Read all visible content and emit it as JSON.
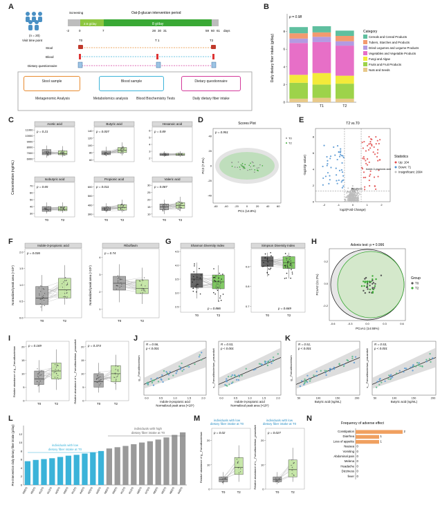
{
  "figure": {
    "panels": [
      "A",
      "B",
      "C",
      "D",
      "E",
      "F",
      "G",
      "H",
      "I",
      "J",
      "K",
      "L",
      "M",
      "N"
    ]
  },
  "panel_a": {
    "n_label": "(n = 20)",
    "phase_screening": "Screening",
    "phase_intervention": "Oat-β-glucan intervention period",
    "dose1": "2.6 g/day",
    "dose2": "8 g/day",
    "day_ticks": [
      "-2",
      "0",
      "7",
      "28",
      "30",
      "31",
      "59",
      "60",
      "61"
    ],
    "days_label": "days",
    "visit_label": "Visit time point",
    "visits": [
      "T0",
      "T 1",
      "T2"
    ],
    "rows": [
      "Stool",
      "Blood",
      "Dietary questionnaire"
    ],
    "boxes": [
      {
        "title": "Stool sample",
        "sub": "Metagenomic Analysis",
        "color": "#e88a2e"
      },
      {
        "title": "Blood sample",
        "sub1": "Metabolomics analysis",
        "sub2": "Blood Biochemistry Tests",
        "color": "#3bb3d9"
      },
      {
        "title": "Dietary questionnaire",
        "sub": "Daily dietary fiber intake",
        "color": "#d3389a"
      }
    ]
  },
  "chart_data": [
    {
      "panel": "B",
      "type": "bar",
      "stacked": true,
      "ylabel": "Daily dietary fiber intake (g/day)",
      "p_label": "p = 0.98",
      "categories": [
        "T0",
        "T1",
        "T2"
      ],
      "ylim": [
        0,
        10
      ],
      "yticks": [
        0,
        2,
        4,
        6,
        8
      ],
      "legend_title": "Category",
      "series": [
        {
          "name": "Nuts and Seeds",
          "color": "#e8c98a",
          "values": [
            0.4,
            0.5,
            0.4
          ]
        },
        {
          "name": "Fruits and Fruit Products",
          "color": "#9dd34a",
          "values": [
            1.8,
            1.5,
            1.7
          ]
        },
        {
          "name": "Fungi and Algae",
          "color": "#f3ea3a",
          "values": [
            0.9,
            1.3,
            0.9
          ]
        },
        {
          "name": "Vegetables and Vegetable Products",
          "color": "#e76fc7",
          "values": [
            3.6,
            3.5,
            3.4
          ]
        },
        {
          "name": "Dried Legumes and Legume Products",
          "color": "#b39be2",
          "values": [
            0.5,
            0.6,
            0.5
          ]
        },
        {
          "name": "Tubers, Starches and Products",
          "color": "#f39a6f",
          "values": [
            0.6,
            0.5,
            0.6
          ]
        },
        {
          "name": "Cereals and Cereal Products",
          "color": "#5fbf9f",
          "values": [
            0.7,
            0.7,
            0.6
          ]
        }
      ]
    },
    {
      "panel": "C",
      "type": "box",
      "ylabel": "Concentration (ng/mL)",
      "subplots": [
        {
          "title": "Acetic acid",
          "p": "p = 0.21",
          "yticks": [
            "6000",
            "7000",
            "8000",
            "9000",
            "10000",
            "11000"
          ],
          "ylim": [
            5500,
            11500
          ],
          "T0": [
            6200,
            6700,
            7000,
            7600,
            8300
          ],
          "T2": [
            6300,
            6700,
            6900,
            7400,
            8200
          ]
        },
        {
          "title": "Butyric acid",
          "p": "p = 0.007",
          "yticks": [
            "60",
            "80",
            "100",
            "120",
            "140"
          ],
          "ylim": [
            55,
            150
          ],
          "T0": [
            70,
            74,
            78,
            84,
            96
          ],
          "T2": [
            72,
            80,
            86,
            94,
            108
          ]
        },
        {
          "title": "Hexanoic acid",
          "p": "p = 0.89",
          "yticks": [
            "2",
            "3",
            "4",
            "5",
            "6"
          ],
          "ylim": [
            1.5,
            6.5
          ],
          "T0": [
            2.2,
            2.4,
            2.5,
            2.7,
            3.0
          ],
          "T2": [
            2.2,
            2.4,
            2.5,
            2.7,
            3.0
          ]
        },
        {
          "title": "Isobutyric acid",
          "p": "p = 0.65",
          "yticks": [
            "30",
            "40",
            "50",
            "60",
            "70"
          ],
          "ylim": [
            25,
            75
          ],
          "T0": [
            30,
            33,
            36,
            40,
            46
          ],
          "T2": [
            31,
            34,
            36,
            40,
            46
          ]
        },
        {
          "title": "Propionic acid",
          "p": "p = 0.011",
          "yticks": [
            "300",
            "400",
            "500",
            "600"
          ],
          "ylim": [
            270,
            650
          ],
          "T0": [
            320,
            340,
            360,
            380,
            420
          ],
          "T2": [
            320,
            345,
            375,
            405,
            460
          ]
        },
        {
          "title": "Valeric acid",
          "p": "p = 0.087",
          "yticks": [
            "10",
            "15",
            "20",
            "25",
            "30"
          ],
          "ylim": [
            8,
            32
          ],
          "T0": [
            10,
            13,
            15,
            17,
            20
          ],
          "T2": [
            12,
            14,
            16,
            18,
            22
          ]
        }
      ],
      "groups": [
        "T0",
        "T2"
      ]
    },
    {
      "panel": "D",
      "type": "scatter",
      "title": "Scores Plot",
      "p_label": "p = 0.951",
      "xlabel": "PC1 (14.8%)",
      "ylabel": "PC2 (7.9%)",
      "xticks": [
        "-60",
        "-40",
        "-20",
        "0",
        "20",
        "40",
        "60"
      ],
      "yticks": [
        "-40",
        "-20",
        "0",
        "20",
        "40"
      ],
      "xlim": [
        -65,
        65
      ],
      "ylim": [
        -50,
        50
      ],
      "legend": [
        "T0",
        "T2"
      ]
    },
    {
      "panel": "E",
      "type": "scatter",
      "title": "T2 vs.T0",
      "xlabel": "log2(Fold Change)",
      "ylabel": "-log10(p value)",
      "xticks": [
        "-2",
        "-1",
        "0",
        "1",
        "2"
      ],
      "yticks": [
        "0",
        "2",
        "4",
        "6",
        "8"
      ],
      "xlim": [
        -2.6,
        2.6
      ],
      "ylim": [
        0,
        9
      ],
      "legend_title": "Statistics",
      "legend": [
        "Up: 104",
        "Down: 71",
        "Insignificant: 2604"
      ],
      "annotations": [
        "Indole-3-propionic acid",
        "Riboflavin"
      ]
    },
    {
      "panel": "F",
      "type": "box",
      "ylabel": "Normalized peak area (×10⁶)",
      "subplots": [
        {
          "title": "Indole-3-propionic acid",
          "p": "p = 0.036",
          "yticks": [
            "0.0",
            "0.5",
            "1.0",
            "1.5",
            "2.0"
          ],
          "ylim": [
            0,
            2.1
          ],
          "T0": [
            0.2,
            0.4,
            0.6,
            0.95,
            1.3
          ],
          "T2": [
            0.4,
            0.6,
            0.85,
            1.2,
            1.6
          ]
        },
        {
          "title": "Riboflavin",
          "p": "p = 0.74",
          "yticks": [
            "1",
            "2",
            "3",
            "4"
          ],
          "ylim": [
            0.5,
            4.5
          ],
          "T0": [
            1.4,
            2.1,
            2.5,
            2.9,
            3.6
          ],
          "T2": [
            1.3,
            1.9,
            2.2,
            2.7,
            3.4
          ]
        }
      ],
      "groups": [
        "T0",
        "T2"
      ]
    },
    {
      "panel": "G",
      "type": "box",
      "subplots": [
        {
          "title": "Shannon Diversity Index",
          "p": "p = 0.886",
          "yticks": [
            "2.5",
            "3.0",
            "3.5",
            "4.0",
            "4.5"
          ],
          "ylim": [
            2.3,
            4.6
          ],
          "T0": [
            2.8,
            3.2,
            3.5,
            3.7,
            4.1
          ],
          "T2": [
            2.7,
            3.15,
            3.4,
            3.65,
            4.0
          ]
        },
        {
          "title": "Simpson Diversity Index",
          "p": "p = 0.669",
          "yticks": [
            "0.7",
            "0.8",
            "0.9"
          ],
          "ylim": [
            0.67,
            0.99
          ],
          "T0": [
            0.85,
            0.9,
            0.93,
            0.95,
            0.97
          ],
          "T2": [
            0.84,
            0.89,
            0.92,
            0.95,
            0.97
          ]
        }
      ],
      "groups": [
        "T0",
        "T2"
      ]
    },
    {
      "panel": "H",
      "type": "scatter",
      "title": "Adonis test: p = 0.996",
      "xlabel": "PCoA1 (14.55%)",
      "ylabel": "PCoA2 (11.2%)",
      "xticks": [
        "-0.6",
        "-0.3",
        "0.0",
        "0.3",
        "0.6"
      ],
      "yticks": [
        "-0.2",
        "0.0",
        "0.2"
      ],
      "legend_title": "Group",
      "legend": [
        "T0",
        "T2"
      ]
    },
    {
      "panel": "I",
      "type": "box",
      "subplots": [
        {
          "ylabel": "Relative abundance of g__Faecalibacterium",
          "p": "p = 0.169",
          "yticks": [
            "0",
            "5",
            "10",
            "15",
            "20"
          ],
          "ylim": [
            0,
            22
          ],
          "T0": [
            3,
            6,
            8,
            11,
            15
          ],
          "T2": [
            4,
            8,
            11,
            14,
            19
          ]
        },
        {
          "ylabel": "Relative abundance of s__Faecalibacterium_prausnitzii",
          "p": "p = 0.374",
          "yticks": [
            "0",
            "5",
            "10",
            "15",
            "20"
          ],
          "ylim": [
            0,
            22
          ],
          "T0": [
            3,
            5,
            7,
            10,
            14
          ],
          "T2": [
            4,
            7,
            10,
            13,
            17
          ]
        }
      ],
      "groups": [
        "T0",
        "T2"
      ]
    },
    {
      "panel": "J",
      "type": "scatter",
      "subplots": [
        {
          "r": "R = 0.56,",
          "p": "p < 0.001",
          "ylabel": "g__Faecalibacterium",
          "xlabel1": "Indole-3-propionic acid",
          "xlabel2": "Normalized peak area (×10⁶)",
          "xticks": [
            "0.0",
            "0.5",
            "1.0",
            "1.5",
            "2.0"
          ]
        },
        {
          "r": "R = 0.53,",
          "p": "p < 0.001",
          "ylabel": "s__Faecalibacterium_prausnitzii",
          "xlabel1": "Indole-3-propionic acid",
          "xlabel2": "Normalized peak area (×10⁶)",
          "xticks": [
            "0.0",
            "0.5",
            "1.0",
            "1.5",
            "2.0"
          ]
        }
      ]
    },
    {
      "panel": "K",
      "type": "scatter",
      "subplots": [
        {
          "r": "R = 0.51,",
          "p": "p < 0.001",
          "ylabel": "g__Faecalibacterium",
          "xlabel1": "Butyric acid (ng/mL)",
          "xticks": [
            "50",
            "100",
            "150",
            "200"
          ]
        },
        {
          "r": "R = 0.53,",
          "p": "p < 0.001",
          "ylabel": "s__Faecalibacterium_prausnitzii",
          "xlabel1": "Butyric acid (ng/mL)",
          "xticks": [
            "50",
            "100",
            "150",
            "200"
          ]
        }
      ]
    },
    {
      "panel": "L",
      "type": "bar",
      "ylabel": "Pre-intervention daily dietary fiber intake (g/day)",
      "ylim": [
        0,
        14
      ],
      "yticks": [
        "0",
        "2",
        "4",
        "6",
        "8",
        "10",
        "12"
      ],
      "categories": [
        "H9STI",
        "H5STI",
        "H1STI",
        "H1STI",
        "H2STI",
        "H9STI",
        "H1STI",
        "H4STI",
        "H2STI",
        "H3STI",
        "H6STI",
        "H9STI",
        "H1STI",
        "H1STI",
        "H8STI",
        "H7STI",
        "H6STI",
        "H5STI",
        "H6STI",
        "H4STI"
      ],
      "values": [
        5.6,
        5.9,
        6.1,
        6.3,
        6.6,
        6.9,
        7.1,
        7.4,
        7.7,
        8.0,
        8.6,
        8.9,
        9.2,
        9.6,
        10.0,
        10.3,
        10.7,
        11.2,
        11.8,
        12.4
      ],
      "low_label": [
        "individuals with low",
        "dietary fiber intake at T0"
      ],
      "high_label": [
        "individuals with high",
        "dietary fiber intake at T0"
      ],
      "low_color": "#3bb3d9",
      "high_color": "#9a9a9a"
    },
    {
      "panel": "M",
      "type": "box",
      "header": [
        "individuals with low",
        "dietary fiber intake at T0"
      ],
      "subplots": [
        {
          "ylabel": "Relative abundance of g__Faecalibacterium",
          "p": "p = 0.02",
          "yticks": [
            "0",
            "10",
            "20"
          ],
          "ylim": [
            0,
            25
          ],
          "T0": [
            2,
            3,
            4,
            5,
            7
          ],
          "T2": [
            3,
            6,
            9,
            13,
            18
          ]
        },
        {
          "ylabel": "Relative abundance of s__Faecalibacterium_prausnitzii",
          "p": "p = 0.027",
          "yticks": [
            "0",
            "10",
            "20"
          ],
          "ylim": [
            0,
            25
          ],
          "T0": [
            2,
            3,
            4,
            5,
            7
          ],
          "T2": [
            3,
            5,
            8,
            12,
            17
          ]
        }
      ],
      "groups": [
        "T0",
        "T2"
      ]
    },
    {
      "panel": "N",
      "type": "bar",
      "orientation": "horizontal",
      "title": "Frequency of adverse effect",
      "categories": [
        "Constipation",
        "Diarrhea",
        "Loss of appetite",
        "Nausea",
        "Vomiting",
        "Abdominal pain",
        "Melena",
        "Headache",
        "Dizziness",
        "fever"
      ],
      "values": [
        2,
        1,
        1,
        0,
        0,
        0,
        0,
        0,
        0,
        0
      ],
      "color": "#f0a060"
    }
  ]
}
